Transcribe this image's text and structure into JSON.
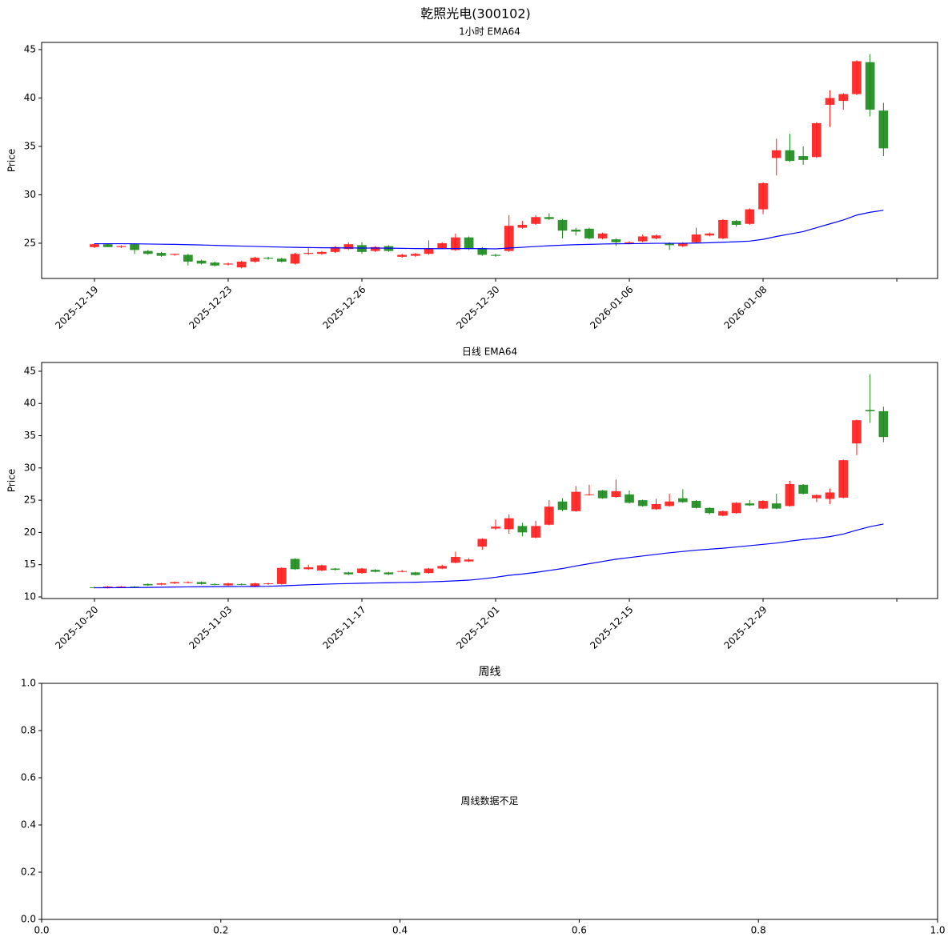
{
  "title": "乾照光电(300102)",
  "chart_data": [
    {
      "type": "candlestick",
      "title": "1小时 EMA64",
      "ylabel": "Price",
      "up_color": "#ff1a1a",
      "down_color": "#1a8a1a",
      "open": [
        24.6,
        24.9,
        24.6,
        24.9,
        24.2,
        24.0,
        23.8,
        23.8,
        23.2,
        23.0,
        22.8,
        22.5,
        23.1,
        23.5,
        23.4,
        22.9,
        23.9,
        23.9,
        24.1,
        24.4,
        24.8,
        24.2,
        24.7,
        23.6,
        23.7,
        23.9,
        24.5,
        24.3,
        25.6,
        24.5,
        23.8,
        24.2,
        26.6,
        27.0,
        27.7,
        27.4,
        26.4,
        26.5,
        25.5,
        25.4,
        25.0,
        25.2,
        25.5,
        25.0,
        24.7,
        25.1,
        25.8,
        25.5,
        27.3,
        27.0,
        28.5,
        33.8,
        34.6,
        34.0,
        33.9,
        39.3,
        39.7,
        40.4,
        43.7,
        38.7
      ],
      "high": [
        25.0,
        25.0,
        24.8,
        25.0,
        24.3,
        24.1,
        23.9,
        23.9,
        23.3,
        23.1,
        23.0,
        23.2,
        23.6,
        23.6,
        23.5,
        24.0,
        24.6,
        24.2,
        24.7,
        25.1,
        25.1,
        24.7,
        24.8,
        23.9,
        24.0,
        25.3,
        25.1,
        26.0,
        25.7,
        24.6,
        23.9,
        27.9,
        27.3,
        27.9,
        28.1,
        27.5,
        26.6,
        26.6,
        26.1,
        25.5,
        25.2,
        25.9,
        25.9,
        25.1,
        25.1,
        26.6,
        26.1,
        27.5,
        27.4,
        28.6,
        31.3,
        35.8,
        36.3,
        35.0,
        37.5,
        40.8,
        40.5,
        43.9,
        44.5,
        39.5
      ],
      "low": [
        24.5,
        24.6,
        24.5,
        23.9,
        23.8,
        23.6,
        23.7,
        22.7,
        22.8,
        22.6,
        22.7,
        22.4,
        23.0,
        23.3,
        23.0,
        22.8,
        23.8,
        23.8,
        24.0,
        24.3,
        23.9,
        24.1,
        24.1,
        23.5,
        23.6,
        23.8,
        24.4,
        24.2,
        24.3,
        23.7,
        23.6,
        24.1,
        26.5,
        26.9,
        27.4,
        25.5,
        25.8,
        25.4,
        25.4,
        24.7,
        24.9,
        25.1,
        25.4,
        24.3,
        24.6,
        25.0,
        25.7,
        25.4,
        26.7,
        26.9,
        28.0,
        32.0,
        33.4,
        33.1,
        33.8,
        37.0,
        38.8,
        40.3,
        38.1,
        34.0
      ],
      "close": [
        24.9,
        24.6,
        24.7,
        24.3,
        23.9,
        23.7,
        23.9,
        23.1,
        22.9,
        22.7,
        22.9,
        23.1,
        23.5,
        23.4,
        23.1,
        23.9,
        24.0,
        24.1,
        24.6,
        24.9,
        24.1,
        24.6,
        24.2,
        23.8,
        23.9,
        24.5,
        25.0,
        25.6,
        24.4,
        23.8,
        23.7,
        26.8,
        26.9,
        27.7,
        27.5,
        26.3,
        26.2,
        25.5,
        26.0,
        25.1,
        25.1,
        25.7,
        25.8,
        24.8,
        25.0,
        25.9,
        26.0,
        27.4,
        26.9,
        28.5,
        31.2,
        34.6,
        33.5,
        33.6,
        37.4,
        40.0,
        40.4,
        43.8,
        38.8,
        34.8
      ],
      "ema": [
        24.95,
        24.95,
        24.95,
        24.94,
        24.92,
        24.9,
        24.88,
        24.85,
        24.82,
        24.78,
        24.74,
        24.7,
        24.67,
        24.63,
        24.6,
        24.57,
        24.55,
        24.53,
        24.52,
        24.51,
        24.5,
        24.5,
        24.49,
        24.47,
        24.45,
        24.44,
        24.44,
        24.45,
        24.45,
        24.44,
        24.42,
        24.5,
        24.58,
        24.66,
        24.74,
        24.8,
        24.85,
        24.88,
        24.92,
        24.94,
        24.95,
        24.97,
        24.99,
        24.99,
        24.99,
        25.02,
        25.05,
        25.1,
        25.15,
        25.22,
        25.4,
        25.7,
        25.95,
        26.2,
        26.6,
        27.0,
        27.4,
        27.9,
        28.2,
        28.4
      ],
      "ema_color": "#0000ff",
      "xlim": [
        -3.95,
        63.05
      ],
      "xticks": [
        {
          "value": 0,
          "label": "2025-12-19"
        },
        {
          "value": 10,
          "label": "2025-12-23"
        },
        {
          "value": 20,
          "label": "2025-12-26"
        },
        {
          "value": 30,
          "label": "2025-12-30"
        },
        {
          "value": 40,
          "label": "2026-01-06"
        },
        {
          "value": 50,
          "label": "2026-01-08"
        },
        {
          "value": 60,
          "label": null
        }
      ],
      "ylim": [
        21.36,
        45.74
      ],
      "yticks": [
        25,
        30,
        35,
        40,
        45
      ]
    },
    {
      "type": "candlestick",
      "title": "日线 EMA64",
      "ylabel": "Price",
      "up_color": "#ff1a1a",
      "down_color": "#1a8a1a",
      "open": [
        11.5,
        11.4,
        11.5,
        11.6,
        12.0,
        11.9,
        12.1,
        12.2,
        12.3,
        12.0,
        11.8,
        12.0,
        11.6,
        12.0,
        12.0,
        15.9,
        14.3,
        14.1,
        14.4,
        13.8,
        13.7,
        14.2,
        13.8,
        13.9,
        13.8,
        13.7,
        14.4,
        15.3,
        15.5,
        17.8,
        20.6,
        20.5,
        21.0,
        19.2,
        21.2,
        24.8,
        23.3,
        25.8,
        26.5,
        25.5,
        25.9,
        25.0,
        23.6,
        24.1,
        25.3,
        24.9,
        23.8,
        22.6,
        23.0,
        24.5,
        23.7,
        24.5,
        24.1,
        27.4,
        25.3,
        25.2,
        25.4,
        33.8,
        39.0,
        38.8
      ],
      "high": [
        11.6,
        11.7,
        11.7,
        11.7,
        12.1,
        12.2,
        12.4,
        12.4,
        12.4,
        12.1,
        12.2,
        12.1,
        12.2,
        12.2,
        14.6,
        16.0,
        15.0,
        15.0,
        14.5,
        13.9,
        14.5,
        14.3,
        13.9,
        14.2,
        13.9,
        14.5,
        15.0,
        17.0,
        16.0,
        19.1,
        22.0,
        22.8,
        21.5,
        21.8,
        25.0,
        25.3,
        27.2,
        27.4,
        26.6,
        28.2,
        26.5,
        25.1,
        25.2,
        26.0,
        26.7,
        25.0,
        23.9,
        23.4,
        24.7,
        25.0,
        25.0,
        26.0,
        28.0,
        27.5,
        25.9,
        26.8,
        31.3,
        37.5,
        44.5,
        39.5
      ],
      "low": [
        11.3,
        11.3,
        11.4,
        11.4,
        11.7,
        11.8,
        12.0,
        12.1,
        11.9,
        11.8,
        11.7,
        11.8,
        11.5,
        11.9,
        11.9,
        14.2,
        14.2,
        14.0,
        14.1,
        13.4,
        13.6,
        13.8,
        13.4,
        13.8,
        13.3,
        13.6,
        14.3,
        15.2,
        15.4,
        17.3,
        20.4,
        19.8,
        19.4,
        19.1,
        21.1,
        23.3,
        23.2,
        25.7,
        25.2,
        25.4,
        24.5,
        24.0,
        23.5,
        24.0,
        24.6,
        23.7,
        22.8,
        22.5,
        22.9,
        24.1,
        23.6,
        23.6,
        24.0,
        25.9,
        24.7,
        24.4,
        25.3,
        32.0,
        37.0,
        34.0
      ],
      "close": [
        11.4,
        11.6,
        11.6,
        11.5,
        11.8,
        12.1,
        12.3,
        12.3,
        12.0,
        11.9,
        12.1,
        11.9,
        12.1,
        12.1,
        14.5,
        14.3,
        14.6,
        14.9,
        14.2,
        13.5,
        14.4,
        13.9,
        13.5,
        14.0,
        13.4,
        14.4,
        14.8,
        16.2,
        15.8,
        19.0,
        20.9,
        22.2,
        20.0,
        21.0,
        24.0,
        23.5,
        26.3,
        25.9,
        25.3,
        26.4,
        24.6,
        24.1,
        24.4,
        24.8,
        24.7,
        23.8,
        23.0,
        23.3,
        24.6,
        24.2,
        24.9,
        23.7,
        27.5,
        26.0,
        25.8,
        26.2,
        31.2,
        37.4,
        38.8,
        34.8
      ],
      "ema": [
        11.42,
        11.43,
        11.44,
        11.45,
        11.47,
        11.5,
        11.53,
        11.56,
        11.58,
        11.6,
        11.61,
        11.62,
        11.63,
        11.65,
        11.72,
        11.8,
        11.88,
        11.96,
        12.02,
        12.07,
        12.12,
        12.16,
        12.2,
        12.24,
        12.28,
        12.33,
        12.4,
        12.5,
        12.6,
        12.8,
        13.05,
        13.35,
        13.55,
        13.8,
        14.1,
        14.4,
        14.8,
        15.15,
        15.5,
        15.85,
        16.1,
        16.35,
        16.6,
        16.85,
        17.05,
        17.25,
        17.4,
        17.55,
        17.75,
        17.95,
        18.15,
        18.35,
        18.65,
        18.9,
        19.1,
        19.35,
        19.75,
        20.35,
        20.9,
        21.3
      ],
      "ema_color": "#0000ff",
      "xlim": [
        -3.95,
        63.05
      ],
      "xticks": [
        {
          "value": 0,
          "label": "2025-10-20"
        },
        {
          "value": 10,
          "label": "2025-11-03"
        },
        {
          "value": 20,
          "label": "2025-11-17"
        },
        {
          "value": 30,
          "label": "2025-12-01"
        },
        {
          "value": 40,
          "label": "2025-12-15"
        },
        {
          "value": 50,
          "label": "2025-12-29"
        },
        {
          "value": 60,
          "label": null
        }
      ],
      "ylim": [
        9.75,
        46.36
      ],
      "yticks": [
        10,
        15,
        20,
        25,
        30,
        35,
        40,
        45
      ]
    },
    {
      "type": "blank",
      "title": "周线",
      "annotation": "周线数据不足",
      "xlim": [
        0,
        1
      ],
      "xticks": [
        {
          "value": 0,
          "label": "0.0"
        },
        0.2,
        0.4,
        0.6,
        0.8,
        {
          "value": 1,
          "label": "1.0"
        }
      ],
      "ylim": [
        0,
        1
      ],
      "yticks": [
        {
          "value": 0,
          "label": "0.0"
        },
        0.2,
        0.4,
        0.6,
        0.8,
        {
          "value": 1,
          "label": "1.0"
        }
      ]
    }
  ]
}
